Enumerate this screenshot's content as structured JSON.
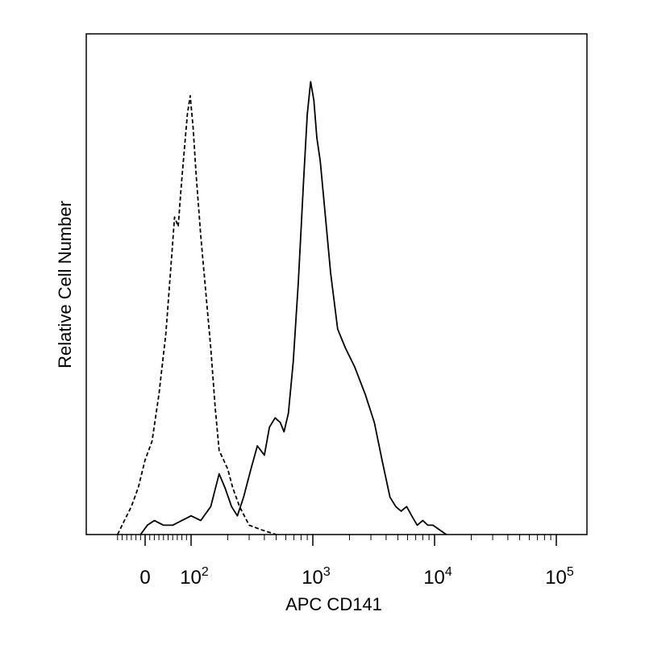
{
  "chart_data": {
    "type": "line",
    "xlabel": "APC CD141",
    "ylabel": "Relative Cell Number",
    "x_scale": "biexponential",
    "x_tick_labels": [
      {
        "value": 0,
        "base": "0",
        "exp": ""
      },
      {
        "value": 100,
        "base": "10",
        "exp": "2"
      },
      {
        "value": 1000,
        "base": "10",
        "exp": "3"
      },
      {
        "value": 10000,
        "base": "10",
        "exp": "4"
      },
      {
        "value": 100000,
        "base": "10",
        "exp": "5"
      }
    ],
    "xlim": [
      -70,
      250000
    ],
    "ylim": [
      0,
      1
    ],
    "y_ticks": false,
    "grid": false,
    "series": [
      {
        "style": "dashed",
        "color": "#000000",
        "points": [
          [
            -60,
            0.0
          ],
          [
            -45,
            0.03
          ],
          [
            -30,
            0.06
          ],
          [
            -15,
            0.1
          ],
          [
            0,
            0.16
          ],
          [
            15,
            0.2
          ],
          [
            30,
            0.3
          ],
          [
            45,
            0.43
          ],
          [
            58,
            0.6
          ],
          [
            64,
            0.68
          ],
          [
            72,
            0.66
          ],
          [
            78,
            0.74
          ],
          [
            85,
            0.82
          ],
          [
            92,
            0.9
          ],
          [
            98,
            0.94
          ],
          [
            104,
            0.87
          ],
          [
            110,
            0.77
          ],
          [
            120,
            0.64
          ],
          [
            132,
            0.52
          ],
          [
            145,
            0.4
          ],
          [
            158,
            0.27
          ],
          [
            170,
            0.18
          ],
          [
            185,
            0.16
          ],
          [
            200,
            0.14
          ],
          [
            220,
            0.1
          ],
          [
            250,
            0.06
          ],
          [
            300,
            0.02
          ],
          [
            380,
            0.01
          ],
          [
            500,
            0.0
          ]
        ]
      },
      {
        "style": "solid",
        "color": "#000000",
        "points": [
          [
            -10,
            0.0
          ],
          [
            5,
            0.02
          ],
          [
            20,
            0.03
          ],
          [
            40,
            0.02
          ],
          [
            60,
            0.02
          ],
          [
            80,
            0.03
          ],
          [
            100,
            0.04
          ],
          [
            120,
            0.03
          ],
          [
            145,
            0.06
          ],
          [
            170,
            0.13
          ],
          [
            190,
            0.1
          ],
          [
            215,
            0.06
          ],
          [
            240,
            0.04
          ],
          [
            270,
            0.08
          ],
          [
            310,
            0.14
          ],
          [
            350,
            0.19
          ],
          [
            400,
            0.17
          ],
          [
            440,
            0.23
          ],
          [
            490,
            0.25
          ],
          [
            540,
            0.24
          ],
          [
            580,
            0.22
          ],
          [
            630,
            0.26
          ],
          [
            690,
            0.37
          ],
          [
            760,
            0.54
          ],
          [
            840,
            0.76
          ],
          [
            900,
            0.9
          ],
          [
            960,
            0.97
          ],
          [
            1020,
            0.93
          ],
          [
            1080,
            0.85
          ],
          [
            1150,
            0.8
          ],
          [
            1250,
            0.7
          ],
          [
            1400,
            0.56
          ],
          [
            1600,
            0.44
          ],
          [
            1850,
            0.4
          ],
          [
            2200,
            0.36
          ],
          [
            2700,
            0.3
          ],
          [
            3200,
            0.24
          ],
          [
            3700,
            0.16
          ],
          [
            4300,
            0.08
          ],
          [
            4800,
            0.06
          ],
          [
            5300,
            0.05
          ],
          [
            5900,
            0.06
          ],
          [
            6500,
            0.04
          ],
          [
            7200,
            0.02
          ],
          [
            8000,
            0.03
          ],
          [
            8800,
            0.02
          ],
          [
            9700,
            0.02
          ],
          [
            11000,
            0.01
          ],
          [
            12500,
            0.0
          ]
        ]
      }
    ]
  }
}
